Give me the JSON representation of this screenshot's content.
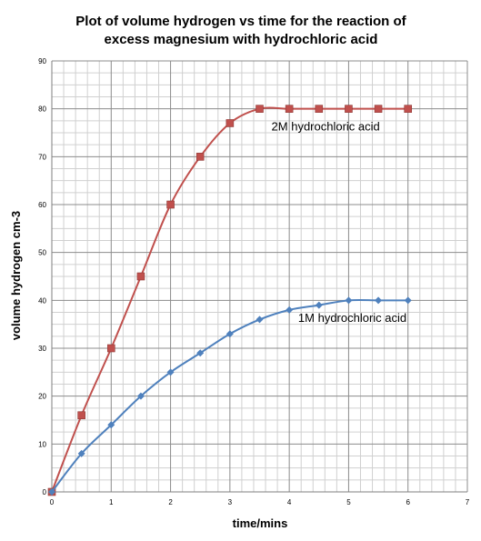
{
  "chart_data": {
    "type": "line",
    "title": [
      "Plot of volume hydrogen vs time for the reaction of",
      "excess magnesium with hydrochloric acid"
    ],
    "xlabel": "time/mins",
    "ylabel": "volume hydrogen cm-3",
    "xlim": [
      0,
      7
    ],
    "ylim": [
      0,
      90
    ],
    "x_ticks": [
      "0",
      "1",
      "2",
      "3",
      "4",
      "5",
      "6",
      "7"
    ],
    "y_ticks": [
      "0",
      "10",
      "20",
      "30",
      "40",
      "50",
      "60",
      "70",
      "80",
      "90"
    ],
    "grid": true,
    "legend": "none",
    "series": [
      {
        "name": "2M hydrochloric acid",
        "color": "#c0504d",
        "marker": "square",
        "x": [
          0,
          0.5,
          1,
          1.5,
          2,
          2.5,
          3,
          3.5,
          4,
          4.5,
          5,
          5.5,
          6
        ],
        "y": [
          0,
          16,
          30,
          45,
          60,
          70,
          77,
          80,
          80,
          80,
          80,
          80,
          80
        ]
      },
      {
        "name": "1M hydrochloric acid",
        "color": "#4f81bd",
        "marker": "diamond",
        "x": [
          0,
          0.5,
          1,
          1.5,
          2,
          2.5,
          3,
          3.5,
          4,
          4.5,
          5,
          5.5,
          6
        ],
        "y": [
          0,
          8,
          14,
          20,
          25,
          29,
          33,
          36,
          38,
          39,
          40,
          40,
          40
        ]
      }
    ],
    "annotations": [
      {
        "series": 0,
        "text": "2M hydrochloric acid",
        "x": 3.7,
        "y": 75.5
      },
      {
        "series": 1,
        "text": "1M hydrochloric acid",
        "x": 4.15,
        "y": 35.5
      }
    ]
  }
}
